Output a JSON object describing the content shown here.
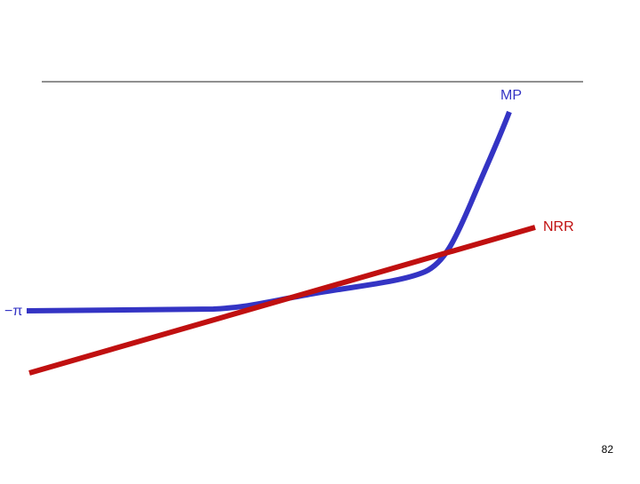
{
  "labels": {
    "mp": "MP",
    "nrr": "NRR",
    "minus_pi": "−π"
  },
  "page_number": "82"
}
